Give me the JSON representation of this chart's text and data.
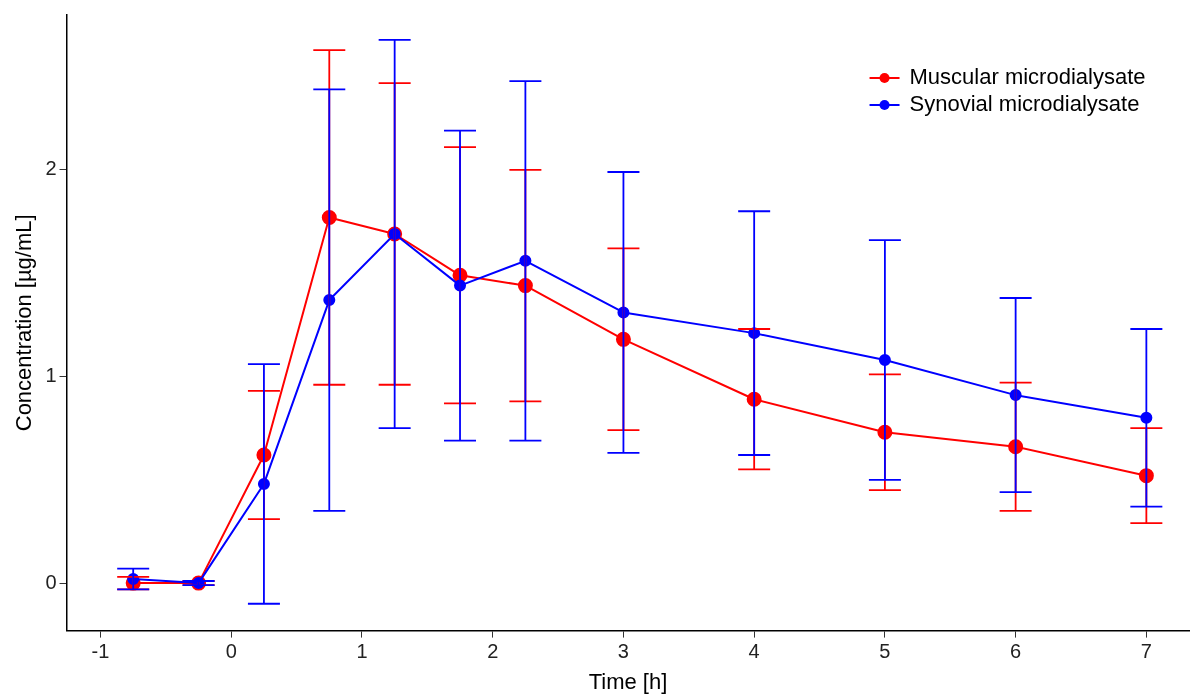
{
  "chart_data": {
    "type": "line",
    "xlabel": "Time [h]",
    "ylabel": "Concentration [µg/mL]",
    "x": [
      -0.75,
      -0.25,
      0.25,
      0.75,
      1.25,
      1.75,
      2.25,
      3,
      4,
      5,
      6,
      7
    ],
    "series": [
      {
        "name": "Muscular microdialysate",
        "color": "#ff0000",
        "values": [
          0.0,
          0.0,
          0.62,
          1.77,
          1.69,
          1.49,
          1.44,
          1.18,
          0.89,
          0.73,
          0.66,
          0.52
        ],
        "errors": [
          0.03,
          0.01,
          0.31,
          0.81,
          0.73,
          0.62,
          0.56,
          0.44,
          0.34,
          0.28,
          0.31,
          0.23
        ]
      },
      {
        "name": "Synovial microdialysate",
        "color": "#0000ff",
        "values": [
          0.02,
          0.0,
          0.48,
          1.37,
          1.69,
          1.44,
          1.56,
          1.31,
          1.21,
          1.08,
          0.91,
          0.8
        ],
        "errors": [
          0.05,
          0.01,
          0.58,
          1.02,
          0.94,
          0.75,
          0.87,
          0.68,
          0.59,
          0.58,
          0.47,
          0.43
        ]
      }
    ],
    "xlim": [
      -1.26,
      7.33
    ],
    "xticks": [
      -1,
      0,
      1,
      2,
      3,
      4,
      5,
      6,
      7
    ],
    "ylim": [
      -0.23,
      2.75
    ],
    "yticks": [
      0,
      1,
      2
    ],
    "grid": false,
    "legend": "top right",
    "marker": "circle",
    "line_style": "solid"
  }
}
